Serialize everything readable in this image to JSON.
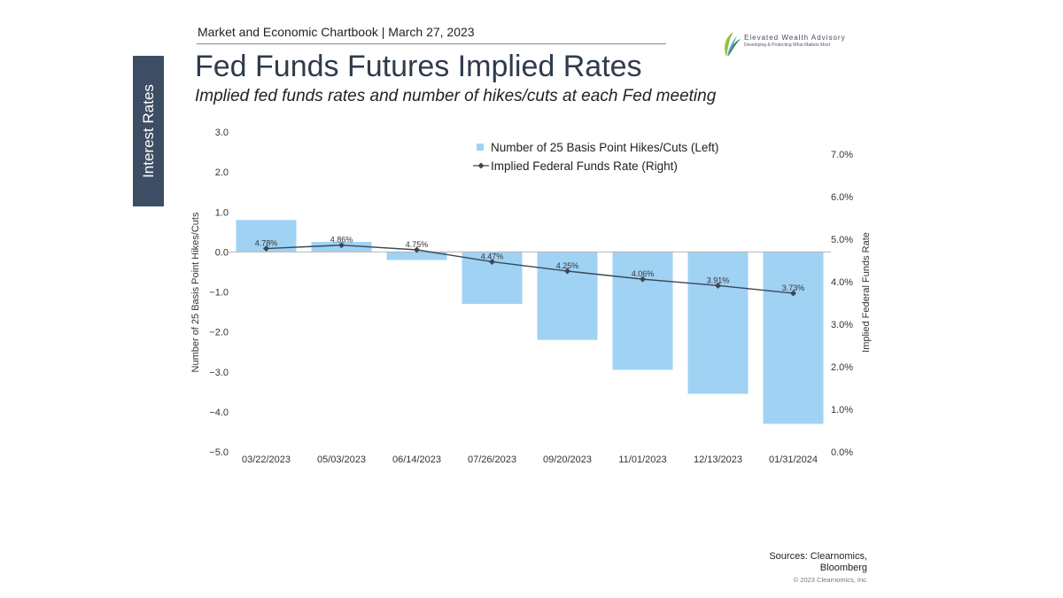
{
  "header": {
    "chartbook": "Market and Economic Chartbook | March 27, 2023",
    "section_tab": "Interest Rates",
    "title": "Fed Funds Futures Implied Rates",
    "subtitle": "Implied fed funds rates and number of hikes/cuts at each Fed meeting"
  },
  "logo": {
    "name": "Elevated Wealth Advisory",
    "tagline": "Developing & Protecting What Matters Most",
    "colors": [
      "#8dc63f",
      "#2e8b57",
      "#4a90c2"
    ]
  },
  "footer": {
    "sources_line1": "Sources: Clearnomics,",
    "sources_line2": "Bloomberg",
    "copyright": "© 2023 Clearnomics, Inc."
  },
  "chart_data": {
    "type": "bar",
    "categories": [
      "03/22/2023",
      "05/03/2023",
      "06/14/2023",
      "07/26/2023",
      "09/20/2023",
      "11/01/2023",
      "12/13/2023",
      "01/31/2024"
    ],
    "series": [
      {
        "name": "Number of 25 Basis Point Hikes/Cuts (Left)",
        "type": "bar",
        "axis": "left",
        "color": "#a0d2f4",
        "values": [
          0.8,
          0.25,
          -0.2,
          -1.3,
          -2.2,
          -2.95,
          -3.55,
          -4.3
        ]
      },
      {
        "name": "Implied Federal Funds Rate (Right)",
        "type": "line",
        "axis": "right",
        "color": "#3a4757",
        "values": [
          4.78,
          4.86,
          4.75,
          4.47,
          4.25,
          4.06,
          3.91,
          3.73
        ],
        "labels": [
          "4.78%",
          "4.86%",
          "4.75%",
          "4.47%",
          "4.25%",
          "4.06%",
          "3.91%",
          "3.73%"
        ]
      }
    ],
    "ylabel_left": "Number of 25 Basis Point Hikes/Cuts",
    "ylabel_right": "Implied Federal Funds Rate",
    "ylim_left": [
      -5,
      3
    ],
    "ylim_right": [
      0,
      7.5
    ],
    "left_ticks": [
      "3.0",
      "2.0",
      "1.0",
      "0.0",
      "−1.0",
      "−2.0",
      "−3.0",
      "−4.0",
      "−5.0"
    ],
    "left_tick_values": [
      3,
      2,
      1,
      0,
      -1,
      -2,
      -3,
      -4,
      -5
    ],
    "right_ticks": [
      "7.0%",
      "6.0%",
      "5.0%",
      "4.0%",
      "3.0%",
      "2.0%",
      "1.0%",
      "0.0%"
    ],
    "right_tick_values": [
      7,
      6,
      5,
      4,
      3,
      2,
      1,
      0
    ],
    "legend_position": "top-right",
    "grid": false
  }
}
